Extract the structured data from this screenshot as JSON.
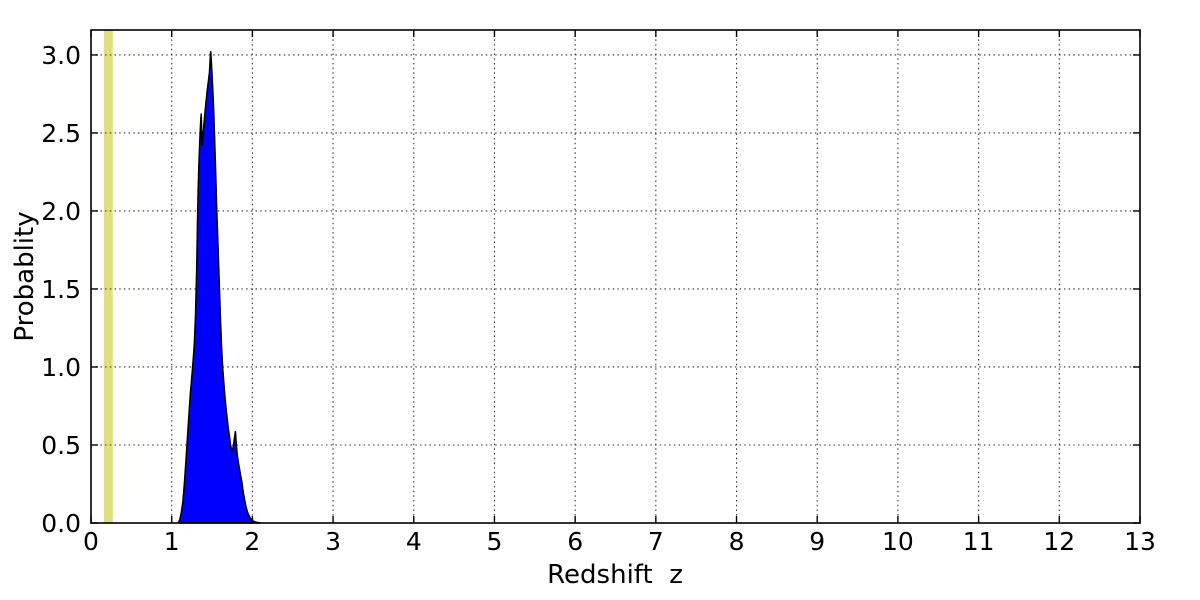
{
  "figure": {
    "background": "#ffffff",
    "frame_color": "#000000",
    "grid_color": "#222222",
    "text_color": "#000000"
  },
  "chart_data": {
    "type": "area",
    "title": "",
    "xlabel": "Redshift  z",
    "ylabel": "Probablity",
    "xlim": [
      0,
      13
    ],
    "ylim": [
      0,
      3.16
    ],
    "xticks": [
      0,
      1,
      2,
      3,
      4,
      5,
      6,
      7,
      8,
      9,
      10,
      11,
      12,
      13
    ],
    "xtick_labels": [
      "0",
      "1",
      "2",
      "3",
      "4",
      "5",
      "6",
      "7",
      "8",
      "9",
      "10",
      "11",
      "12",
      "13"
    ],
    "yticks": [
      0,
      0.5,
      1,
      1.5,
      2,
      2.5,
      3
    ],
    "ytick_labels": [
      "0.0",
      "0.5",
      "1.0",
      "1.5",
      "2.0",
      "2.5",
      "3.0"
    ],
    "grid": true,
    "grid_style": "dotted",
    "legend": "none",
    "series": [
      {
        "name": "redshift-probability-density",
        "type": "filled-curve",
        "fill_color": "#0000ff",
        "line_color": "#000000",
        "peak_x": 1.48,
        "peak_y": 3.0,
        "points": [
          [
            1.08,
            0
          ],
          [
            1.1,
            0.02
          ],
          [
            1.12,
            0.07
          ],
          [
            1.14,
            0.14
          ],
          [
            1.16,
            0.27
          ],
          [
            1.18,
            0.42
          ],
          [
            1.2,
            0.58
          ],
          [
            1.23,
            0.82
          ],
          [
            1.26,
            1.0
          ],
          [
            1.28,
            1.14
          ],
          [
            1.295,
            1.32
          ],
          [
            1.31,
            1.62
          ],
          [
            1.32,
            1.92
          ],
          [
            1.33,
            2.16
          ],
          [
            1.34,
            2.33
          ],
          [
            1.35,
            2.46
          ],
          [
            1.36,
            2.57
          ],
          [
            1.366,
            2.62
          ],
          [
            1.371,
            2.52
          ],
          [
            1.377,
            2.42
          ],
          [
            1.384,
            2.45
          ],
          [
            1.4,
            2.56
          ],
          [
            1.42,
            2.67
          ],
          [
            1.44,
            2.77
          ],
          [
            1.455,
            2.83
          ],
          [
            1.468,
            2.89
          ],
          [
            1.477,
            2.97
          ],
          [
            1.484,
            3.02
          ],
          [
            1.491,
            2.96
          ],
          [
            1.5,
            2.87
          ],
          [
            1.51,
            2.77
          ],
          [
            1.52,
            2.63
          ],
          [
            1.532,
            2.46
          ],
          [
            1.545,
            2.23
          ],
          [
            1.558,
            2.01
          ],
          [
            1.572,
            1.81
          ],
          [
            1.587,
            1.56
          ],
          [
            1.602,
            1.33
          ],
          [
            1.617,
            1.13
          ],
          [
            1.632,
            0.99
          ],
          [
            1.648,
            0.88
          ],
          [
            1.664,
            0.78
          ],
          [
            1.68,
            0.7
          ],
          [
            1.698,
            0.62
          ],
          [
            1.716,
            0.55
          ],
          [
            1.733,
            0.49
          ],
          [
            1.749,
            0.46
          ],
          [
            1.764,
            0.49
          ],
          [
            1.777,
            0.54
          ],
          [
            1.789,
            0.585
          ],
          [
            1.799,
            0.51
          ],
          [
            1.81,
            0.44
          ],
          [
            1.825,
            0.39
          ],
          [
            1.845,
            0.33
          ],
          [
            1.866,
            0.27
          ],
          [
            1.889,
            0.19
          ],
          [
            1.913,
            0.12
          ],
          [
            1.938,
            0.07
          ],
          [
            1.968,
            0.035
          ],
          [
            2.0,
            0.015
          ],
          [
            2.04,
            0.006
          ],
          [
            2.1,
            0
          ]
        ]
      }
    ],
    "annotations": [
      {
        "name": "vertical-highlight-band",
        "type": "vspan",
        "x_from": 0.16,
        "x_to": 0.27,
        "color": "#dfdf80"
      }
    ]
  }
}
